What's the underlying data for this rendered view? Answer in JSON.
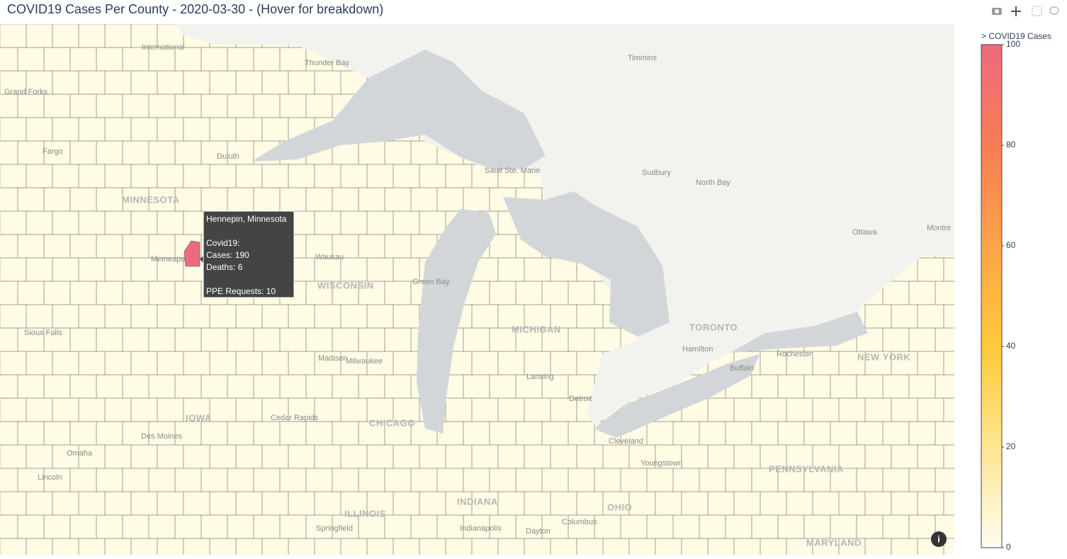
{
  "header": {
    "title": "COVID19 Cases Per County - 2020-03-30 - (Hover for breakdown)"
  },
  "map": {
    "places": [
      "International",
      "Thunder Bay",
      "Timmins",
      "Grand Forks",
      "Fargo",
      "Duluth",
      "Sault Ste. Marie",
      "Sudbury",
      "North Bay",
      "MINNESOTA",
      "Wausau",
      "WISCONSIN",
      "Green Bay",
      "Ottawa",
      "Montre",
      "MICHIGAN",
      "TORONTO",
      "Hamilton",
      "Buffalo",
      "Rochester",
      "NEW YORK",
      "Madison",
      "Milwaukee",
      "Lansing",
      "Detroit",
      "Sioux Falls",
      "Minneapolis",
      "CHICAGO",
      "IOWA",
      "Cedar Rapids",
      "Des Moines",
      "Omaha",
      "Lincoln",
      "Cleveland",
      "Youngstown",
      "PENNSYLVANIA",
      "INDIANA",
      "OHIO",
      "Columbus",
      "Indianapolis",
      "Springfield",
      "ILLINOIS",
      "Dayton",
      "MARYLAND"
    ]
  },
  "colorbar": {
    "title": "> COVID19 Cases",
    "range": [
      0,
      100
    ],
    "ticks": [
      0,
      20,
      40,
      60,
      80,
      100
    ],
    "colorscale": [
      [
        0,
        "#fffdf2"
      ],
      [
        20,
        "#fde591"
      ],
      [
        40,
        "#fec93a"
      ],
      [
        60,
        "#fda44a"
      ],
      [
        80,
        "#f87d55"
      ],
      [
        100,
        "#ec6b7e"
      ]
    ]
  },
  "tooltip": {
    "county": "Hennepin, Minnesota",
    "section": "Covid19:",
    "cases": {
      "label": "Cases:",
      "value": 190
    },
    "deaths": {
      "label": "Deaths:",
      "value": 6
    },
    "ppe": {
      "label": "PPE Requests:",
      "value": 10
    }
  }
}
